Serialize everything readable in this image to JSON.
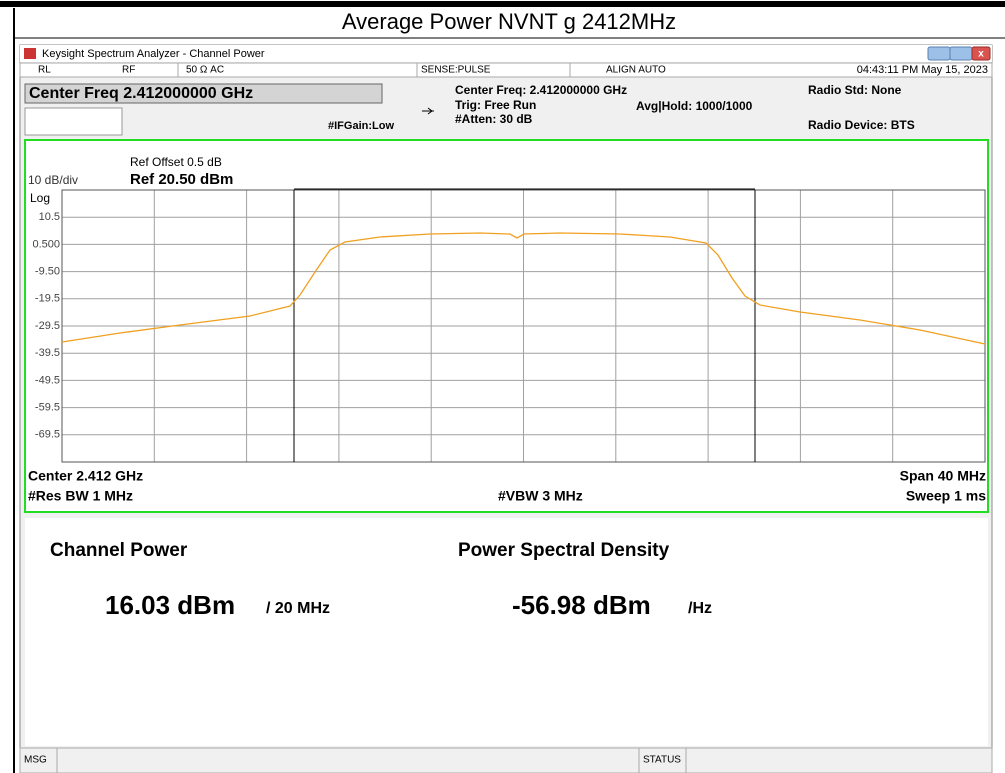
{
  "header": {
    "title": "Average Power NVNT g 2412MHz"
  },
  "window": {
    "title": "Keysight Spectrum Analyzer - Channel Power"
  },
  "status_row": {
    "rl": "RL",
    "rf": "RF",
    "impedance": "50 Ω  AC",
    "sense": "SENSE:PULSE",
    "align": "ALIGN AUTO",
    "datetime": "04:43:11 PM May 15, 2023"
  },
  "settings": {
    "center_box": "Center Freq 2.412000000 GHz",
    "center_freq": "Center Freq: 2.412000000 GHz",
    "trig": "Trig: Free Run",
    "atten": "#Atten: 30 dB",
    "avg_hold": "Avg|Hold: 1000/1000",
    "ifgain": "#IFGain:Low",
    "radio_std": "Radio Std: None",
    "radio_device": "Radio Device: BTS"
  },
  "plot": {
    "ref_offset": "Ref Offset 0.5 dB",
    "ref_level": "Ref 20.50 dBm",
    "scale": "10 dB/div",
    "log": "Log",
    "y_labels": [
      "10.5",
      "0.500",
      "-9.50",
      "-19.5",
      "-29.5",
      "-39.5",
      "-49.5",
      "-59.5",
      "-69.5"
    ],
    "center": "Center  2.412 GHz",
    "res_bw": "#Res BW  1 MHz",
    "vbw": "#VBW  3 MHz",
    "span": "Span 40 MHz",
    "sweep": "Sweep  1 ms"
  },
  "results": {
    "channel_power_label": "Channel Power",
    "channel_power": "16.03 dBm",
    "channel_power_unit": "/ 20 MHz",
    "psd_label": "Power Spectral Density",
    "psd": "-56.98 dBm",
    "psd_unit": "/Hz"
  },
  "footer": {
    "msg": "MSG",
    "status": "STATUS"
  }
}
